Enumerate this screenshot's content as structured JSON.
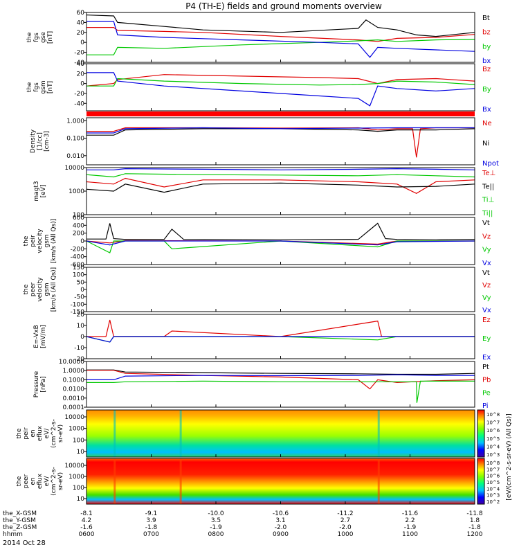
{
  "title": "P4 (TH-E) fields and ground moments overview",
  "date_label": "2014 Oct 28",
  "colors": {
    "black": "#000000",
    "red": "#e00000",
    "green": "#00c800",
    "blue": "#0000e0"
  },
  "chart_data": [
    {
      "type": "line",
      "panel": "fgs-gse",
      "ylabel_lines": [
        "the",
        "fgs",
        "gse",
        "[nT]"
      ],
      "ylim": [
        -40,
        60
      ],
      "yticks": [
        "60",
        "40",
        "20",
        "0",
        "-20",
        "-40"
      ],
      "yvals": [
        60,
        40,
        20,
        0,
        -20,
        -40
      ],
      "legend": [
        {
          "text": "Bt",
          "color": "black"
        },
        {
          "text": "bz",
          "color": "red"
        },
        {
          "text": "by",
          "color": "green"
        },
        {
          "text": "bx",
          "color": "blue"
        }
      ],
      "series": [
        {
          "name": "Bt",
          "color": "black",
          "x": [
            0,
            0.07,
            0.08,
            0.2,
            0.3,
            0.5,
            0.7,
            0.72,
            0.75,
            0.8,
            0.85,
            0.9,
            1
          ],
          "y": [
            55,
            53,
            40,
            32,
            25,
            20,
            28,
            45,
            30,
            25,
            15,
            12,
            20
          ]
        },
        {
          "name": "bz",
          "color": "red",
          "x": [
            0,
            0.07,
            0.08,
            0.2,
            0.3,
            0.5,
            0.7,
            0.75,
            0.8,
            0.9,
            1
          ],
          "y": [
            30,
            30,
            24,
            22,
            20,
            12,
            5,
            2,
            8,
            10,
            16
          ]
        },
        {
          "name": "by",
          "color": "green",
          "x": [
            0,
            0.07,
            0.08,
            0.2,
            0.4,
            0.6,
            0.7,
            0.75,
            0.8,
            0.9,
            1
          ],
          "y": [
            -25,
            -25,
            -10,
            -12,
            -5,
            0,
            3,
            5,
            2,
            5,
            6
          ]
        },
        {
          "name": "bx",
          "color": "blue",
          "x": [
            0,
            0.07,
            0.08,
            0.2,
            0.4,
            0.6,
            0.7,
            0.73,
            0.75,
            0.8,
            0.9,
            1
          ],
          "y": [
            42,
            42,
            15,
            10,
            5,
            0,
            -3,
            -30,
            -10,
            -12,
            -15,
            -18
          ]
        }
      ]
    },
    {
      "type": "line",
      "panel": "fgs-gsm",
      "ylabel_lines": [
        "the",
        "fgs",
        "gsm",
        "[nT]"
      ],
      "ylim": [
        -55,
        40
      ],
      "yticks": [
        "40",
        "20",
        "0",
        "-20",
        "-40"
      ],
      "yvals": [
        40,
        20,
        0,
        -20,
        -40
      ],
      "legend": [
        {
          "text": "Bz",
          "color": "red"
        },
        {
          "text": "By",
          "color": "green"
        },
        {
          "text": "Bx",
          "color": "blue"
        }
      ],
      "series": [
        {
          "name": "Bz",
          "color": "red",
          "x": [
            0,
            0.07,
            0.08,
            0.2,
            0.4,
            0.6,
            0.7,
            0.75,
            0.8,
            0.9,
            1
          ],
          "y": [
            -5,
            0,
            8,
            18,
            15,
            12,
            10,
            0,
            8,
            10,
            5
          ]
        },
        {
          "name": "By",
          "color": "green",
          "x": [
            0,
            0.07,
            0.08,
            0.2,
            0.4,
            0.6,
            0.7,
            0.75,
            0.8,
            0.9,
            1
          ],
          "y": [
            -5,
            -5,
            10,
            5,
            0,
            -3,
            -2,
            0,
            5,
            3,
            -2
          ]
        },
        {
          "name": "Bx",
          "color": "blue",
          "x": [
            0,
            0.07,
            0.08,
            0.2,
            0.4,
            0.6,
            0.7,
            0.73,
            0.75,
            0.8,
            0.9,
            1
          ],
          "y": [
            22,
            22,
            5,
            -5,
            -15,
            -25,
            -30,
            -45,
            -5,
            -10,
            -15,
            -10
          ]
        }
      ]
    },
    {
      "type": "line",
      "panel": "density",
      "ylabel_lines": [
        "Density",
        "[1/cc]",
        "[cm-3]"
      ],
      "ylim": [
        0.003,
        1.5
      ],
      "log": true,
      "yticks": [
        "1.000",
        "0.100",
        "0.010"
      ],
      "yvals": [
        1,
        0.1,
        0.01
      ],
      "legend": [
        {
          "text": "Ne",
          "color": "red"
        },
        {
          "text": "Ni",
          "color": "black"
        },
        {
          "text": "Npot",
          "color": "blue"
        }
      ],
      "series": [
        {
          "name": "Ne",
          "color": "red",
          "x": [
            0,
            0.07,
            0.1,
            0.3,
            0.5,
            0.7,
            0.75,
            0.8,
            0.84,
            0.85,
            0.86,
            0.9,
            1
          ],
          "y": [
            0.25,
            0.25,
            0.4,
            0.4,
            0.38,
            0.4,
            0.3,
            0.35,
            0.35,
            0.008,
            0.35,
            0.4,
            0.4
          ]
        },
        {
          "name": "Ni",
          "color": "black",
          "x": [
            0,
            0.07,
            0.1,
            0.3,
            0.5,
            0.7,
            0.75,
            0.8,
            0.9,
            1
          ],
          "y": [
            0.15,
            0.15,
            0.3,
            0.35,
            0.35,
            0.3,
            0.25,
            0.3,
            0.3,
            0.35
          ]
        },
        {
          "name": "Npot",
          "color": "blue",
          "x": [
            0,
            0.07,
            0.1,
            0.3,
            0.5,
            0.7,
            0.8,
            0.9,
            1
          ],
          "y": [
            0.2,
            0.2,
            0.35,
            0.4,
            0.35,
            0.38,
            0.4,
            0.4,
            0.4
          ]
        }
      ]
    },
    {
      "type": "line",
      "panel": "temperature",
      "ylabel_lines": [
        "magt3",
        "[eV]"
      ],
      "ylim": [
        100,
        10000
      ],
      "log": true,
      "yticks": [
        "10000",
        "1000",
        "100"
      ],
      "yvals": [
        10000,
        1000,
        100
      ],
      "legend": [
        {
          "text": "Te⊥",
          "color": "red"
        },
        {
          "text": "Te||",
          "color": "black"
        },
        {
          "text": "Ti⊥",
          "color": "green"
        },
        {
          "text": "Ti||",
          "color": "green"
        }
      ],
      "series": [
        {
          "name": "Ti⊥",
          "color": "blue",
          "x": [
            0,
            0.07,
            0.1,
            0.3,
            0.5,
            0.7,
            0.8,
            0.9,
            1
          ],
          "y": [
            8000,
            8000,
            9000,
            8500,
            8000,
            8500,
            9000,
            8500,
            8000
          ]
        },
        {
          "name": "Ti||",
          "color": "green",
          "x": [
            0,
            0.07,
            0.1,
            0.3,
            0.5,
            0.7,
            0.8,
            0.9,
            1
          ],
          "y": [
            5000,
            4000,
            5500,
            5000,
            4800,
            4500,
            5000,
            4500,
            4000
          ]
        },
        {
          "name": "Te⊥",
          "color": "red",
          "x": [
            0,
            0.07,
            0.1,
            0.2,
            0.3,
            0.5,
            0.7,
            0.8,
            0.85,
            0.9,
            1
          ],
          "y": [
            2500,
            2000,
            3500,
            1500,
            3000,
            3000,
            2500,
            2000,
            800,
            2500,
            3000
          ]
        },
        {
          "name": "Te||",
          "color": "black",
          "x": [
            0,
            0.07,
            0.1,
            0.2,
            0.3,
            0.5,
            0.7,
            0.8,
            0.9,
            1
          ],
          "y": [
            1200,
            1000,
            2000,
            900,
            2000,
            2200,
            1800,
            1500,
            1600,
            2000
          ]
        }
      ]
    },
    {
      "type": "line",
      "panel": "peir-velocity",
      "ylabel_lines": [
        "the",
        "peir",
        "velocity",
        "gsm",
        "[km/s (All Qs)]"
      ],
      "ylim": [
        -600,
        600
      ],
      "yticks": [
        "600",
        "400",
        "200",
        "0",
        "-200",
        "-400",
        "-600"
      ],
      "yvals": [
        600,
        400,
        200,
        0,
        -200,
        -400,
        -600
      ],
      "legend": [
        {
          "text": "Vt",
          "color": "black"
        },
        {
          "text": "Vz",
          "color": "red"
        },
        {
          "text": "Vy",
          "color": "green"
        },
        {
          "text": "Vx",
          "color": "blue"
        }
      ],
      "series": [
        {
          "name": "Vt",
          "color": "black",
          "x": [
            0,
            0.05,
            0.06,
            0.07,
            0.1,
            0.2,
            0.22,
            0.25,
            0.5,
            0.7,
            0.75,
            0.77,
            0.8,
            0.9,
            1
          ],
          "y": [
            50,
            50,
            450,
            60,
            40,
            40,
            300,
            40,
            30,
            40,
            450,
            60,
            40,
            30,
            40
          ]
        },
        {
          "name": "Vz",
          "color": "red",
          "x": [
            0,
            0.06,
            0.1,
            0.5,
            0.75,
            0.8,
            1
          ],
          "y": [
            0,
            -50,
            10,
            0,
            -80,
            0,
            0
          ]
        },
        {
          "name": "Vy",
          "color": "green",
          "x": [
            0,
            0.06,
            0.07,
            0.2,
            0.22,
            0.5,
            0.75,
            0.8,
            1
          ],
          "y": [
            0,
            -300,
            0,
            0,
            -200,
            0,
            -150,
            0,
            0
          ]
        },
        {
          "name": "Vx",
          "color": "blue",
          "x": [
            0,
            0.06,
            0.1,
            0.5,
            0.75,
            0.8,
            1
          ],
          "y": [
            0,
            -100,
            0,
            0,
            -100,
            -20,
            0
          ]
        }
      ]
    },
    {
      "type": "line",
      "panel": "peer-velocity",
      "ylabel_lines": [
        "the",
        "peer",
        "velocity",
        "gsm",
        "[km/s (All Qs)]"
      ],
      "ylim": [
        -150,
        150
      ],
      "yticks": [
        "150",
        "100",
        "50",
        "0",
        "-50",
        "-100",
        "-150"
      ],
      "yvals": [
        150,
        100,
        50,
        0,
        -50,
        -100,
        -150
      ],
      "legend": [
        {
          "text": "Vt",
          "color": "black"
        },
        {
          "text": "Vz",
          "color": "red"
        },
        {
          "text": "Vy",
          "color": "green"
        },
        {
          "text": "Vx",
          "color": "blue"
        }
      ],
      "series": []
    },
    {
      "type": "line",
      "panel": "efield",
      "ylabel_lines": [
        "E=-VxB",
        "[mV/m]"
      ],
      "ylim": [
        -20,
        20
      ],
      "yticks": [
        "20",
        "10",
        "0",
        "-10",
        "-20"
      ],
      "yvals": [
        20,
        10,
        0,
        -10,
        -20
      ],
      "legend": [
        {
          "text": "Ez",
          "color": "red"
        },
        {
          "text": "Ey",
          "color": "green"
        },
        {
          "text": "Ex",
          "color": "blue"
        }
      ],
      "series": [
        {
          "name": "Ez",
          "color": "red",
          "x": [
            0,
            0.05,
            0.06,
            0.07,
            0.2,
            0.22,
            0.5,
            0.75,
            0.76,
            0.8,
            1
          ],
          "y": [
            0,
            0,
            15,
            0,
            0,
            5,
            0,
            14,
            0,
            0,
            0
          ]
        },
        {
          "name": "Ey",
          "color": "green",
          "x": [
            0,
            0.06,
            0.07,
            0.2,
            0.5,
            0.75,
            0.8,
            1
          ],
          "y": [
            0,
            -5,
            0,
            0,
            0,
            -3,
            0,
            0
          ]
        },
        {
          "name": "Ex",
          "color": "blue",
          "x": [
            0,
            0.06,
            0.07,
            0.5,
            0.8,
            1
          ],
          "y": [
            0,
            -5,
            0,
            0,
            0,
            0
          ]
        }
      ]
    },
    {
      "type": "line",
      "panel": "pressure",
      "ylabel_lines": [
        "Pressure",
        "[nPa]"
      ],
      "ylim": [
        0.0001,
        10
      ],
      "log": true,
      "yticks": [
        "10.0000",
        "1.0000",
        "0.1000",
        "0.0100",
        "0.0010",
        "0.0001"
      ],
      "yvals": [
        10,
        1,
        0.1,
        0.01,
        0.001,
        0.0001
      ],
      "legend": [
        {
          "text": "Pt",
          "color": "black"
        },
        {
          "text": "Pb",
          "color": "red"
        },
        {
          "text": "Pe",
          "color": "green"
        },
        {
          "text": "Pi",
          "color": "blue"
        }
      ],
      "series": [
        {
          "name": "Pt",
          "color": "black",
          "x": [
            0,
            0.07,
            0.1,
            0.3,
            0.5,
            0.7,
            0.8,
            0.9,
            1
          ],
          "y": [
            1.2,
            1.2,
            0.7,
            0.6,
            0.5,
            0.45,
            0.4,
            0.4,
            0.5
          ]
        },
        {
          "name": "Pb",
          "color": "red",
          "x": [
            0,
            0.07,
            0.1,
            0.3,
            0.5,
            0.7,
            0.73,
            0.75,
            0.8,
            0.9,
            1
          ],
          "y": [
            1.1,
            1.1,
            0.5,
            0.3,
            0.2,
            0.1,
            0.01,
            0.1,
            0.05,
            0.08,
            0.1
          ]
        },
        {
          "name": "Pe",
          "color": "green",
          "x": [
            0,
            0.07,
            0.1,
            0.3,
            0.5,
            0.7,
            0.85,
            0.851,
            0.86,
            1
          ],
          "y": [
            0.05,
            0.05,
            0.06,
            0.07,
            0.06,
            0.06,
            0.06,
            0.0003,
            0.07,
            0.07
          ]
        },
        {
          "name": "Pi",
          "color": "blue",
          "x": [
            0,
            0.07,
            0.1,
            0.3,
            0.5,
            0.7,
            0.8,
            0.9,
            1
          ],
          "y": [
            0.1,
            0.1,
            0.25,
            0.3,
            0.28,
            0.3,
            0.35,
            0.3,
            0.3
          ]
        }
      ]
    },
    {
      "type": "heatmap",
      "panel": "peir-eflux",
      "ylabel_lines": [
        "the",
        "peir",
        "en",
        "eflux",
        "eV/",
        "(cm^2-s-",
        "sr-eV)"
      ],
      "yticks": [
        "10000",
        "1000",
        "100",
        "10"
      ],
      "colorbar_ticks": [
        "10^8",
        "10^7",
        "10^6",
        "10^5",
        "10^4",
        "10^3"
      ],
      "colorbar_label": "[eV/(cm^2-s-sr-eV) (All Qs)]"
    },
    {
      "type": "heatmap",
      "panel": "peer-eflux",
      "ylabel_lines": [
        "the",
        "peer",
        "en",
        "eflux",
        "eV/",
        "(cm^2-s-",
        "sr-eV)"
      ],
      "yticks": [
        "10000",
        "1000",
        "100",
        "10"
      ],
      "colorbar_ticks": [
        "10^8",
        "10^7",
        "10^6",
        "10^5",
        "10^4",
        "10^3",
        "10^2"
      ],
      "colorbar_label": "[eV/(cm^2-s-sr-eV) (All Qs)]"
    }
  ],
  "x_axis": {
    "row_labels": [
      "the_X-GSM",
      "the_Y-GSM",
      "the_Z-GSM",
      "hhmm"
    ],
    "columns": [
      [
        "-8.1",
        "4.2",
        "-1.6",
        "0600"
      ],
      [
        "-9.1",
        "3.9",
        "-1.8",
        "0700"
      ],
      [
        "-10.0",
        "3.5",
        "-1.9",
        "0800"
      ],
      [
        "-10.6",
        "3.1",
        "-2.0",
        "0900"
      ],
      [
        "-11.2",
        "2.7",
        "-2.0",
        "1000"
      ],
      [
        "-11.6",
        "2.2",
        "-1.9",
        "1100"
      ],
      [
        "-11.8",
        "1.8",
        "-1.8",
        "1200"
      ]
    ]
  }
}
